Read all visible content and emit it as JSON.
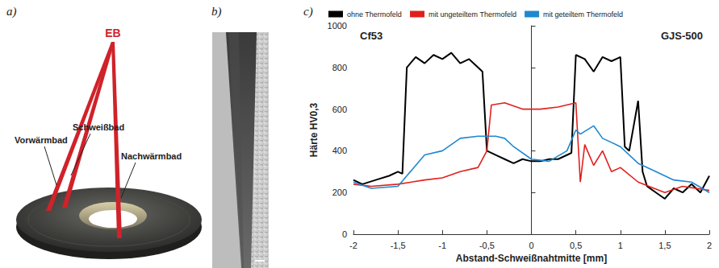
{
  "panel_labels": [
    "a)",
    "b)",
    "c)"
  ],
  "diagram": {
    "beam_label": "EB",
    "labels": [
      "Vorwärmbad",
      "Schweißbad",
      "Nachwärmbad"
    ]
  },
  "chart_data": {
    "type": "line",
    "xlabel": "Abstand-Schweißnahtmitte [mm]",
    "ylabel": "Härte HV0,3",
    "annotations": [
      "Cf53",
      "GJS-500"
    ],
    "xlim": [
      -2,
      2
    ],
    "xticks": [
      {
        "value": -2,
        "label": "-2"
      },
      {
        "value": -1.5,
        "label": "-1,5"
      },
      {
        "value": -1,
        "label": "-1"
      },
      {
        "value": -0.5,
        "label": "-0,5"
      },
      0,
      {
        "value": 0.5,
        "label": "0,5"
      },
      1,
      {
        "value": 1.5,
        "label": "1,5"
      },
      2
    ],
    "ylim": [
      0,
      1000
    ],
    "yticks": [
      0,
      200,
      400,
      600,
      800,
      1000
    ],
    "grid": false,
    "legend": "top",
    "series": [
      {
        "name": "ohne Thermofeld",
        "color": "#000000",
        "x": [
          -2,
          -1.9,
          -1.75,
          -1.6,
          -1.5,
          -1.45,
          -1.4,
          -1.3,
          -1.2,
          -1.1,
          -1.0,
          -0.9,
          -0.8,
          -0.7,
          -0.6,
          -0.55,
          -0.5,
          -0.4,
          -0.3,
          -0.2,
          -0.1,
          0,
          0.1,
          0.2,
          0.3,
          0.45,
          0.5,
          0.6,
          0.7,
          0.8,
          0.9,
          1.0,
          1.05,
          1.1,
          1.2,
          1.25,
          1.3,
          1.4,
          1.5,
          1.6,
          1.7,
          1.8,
          1.9,
          2
        ],
        "values": [
          260,
          240,
          260,
          280,
          300,
          290,
          800,
          850,
          820,
          860,
          840,
          870,
          820,
          840,
          800,
          780,
          400,
          380,
          360,
          340,
          360,
          350,
          350,
          360,
          360,
          390,
          860,
          840,
          780,
          850,
          830,
          850,
          420,
          400,
          640,
          300,
          230,
          200,
          170,
          220,
          200,
          240,
          200,
          280
        ]
      },
      {
        "name": "mit ungeteiltem Thermofeld",
        "color": "#e0201c",
        "x": [
          -2,
          -1.8,
          -1.5,
          -1.2,
          -1.0,
          -0.8,
          -0.6,
          -0.5,
          -0.45,
          -0.3,
          -0.1,
          0.1,
          0.3,
          0.5,
          0.55,
          0.6,
          0.7,
          0.8,
          0.9,
          1.0,
          1.2,
          1.5,
          1.7,
          2
        ],
        "values": [
          240,
          230,
          240,
          260,
          270,
          300,
          320,
          400,
          620,
          630,
          600,
          600,
          610,
          630,
          250,
          430,
          330,
          400,
          300,
          320,
          250,
          200,
          230,
          210
        ]
      },
      {
        "name": "mit geteiltem Thermofeld",
        "color": "#1e88d0",
        "x": [
          -2,
          -1.8,
          -1.5,
          -1.2,
          -1.0,
          -0.8,
          -0.6,
          -0.4,
          -0.3,
          -0.2,
          0,
          0.2,
          0.4,
          0.5,
          0.55,
          0.7,
          0.8,
          1.0,
          1.2,
          1.4,
          1.6,
          1.8,
          2
        ],
        "values": [
          250,
          220,
          230,
          380,
          400,
          460,
          470,
          470,
          460,
          420,
          360,
          350,
          400,
          500,
          480,
          520,
          460,
          420,
          340,
          300,
          260,
          250,
          200
        ]
      }
    ]
  }
}
